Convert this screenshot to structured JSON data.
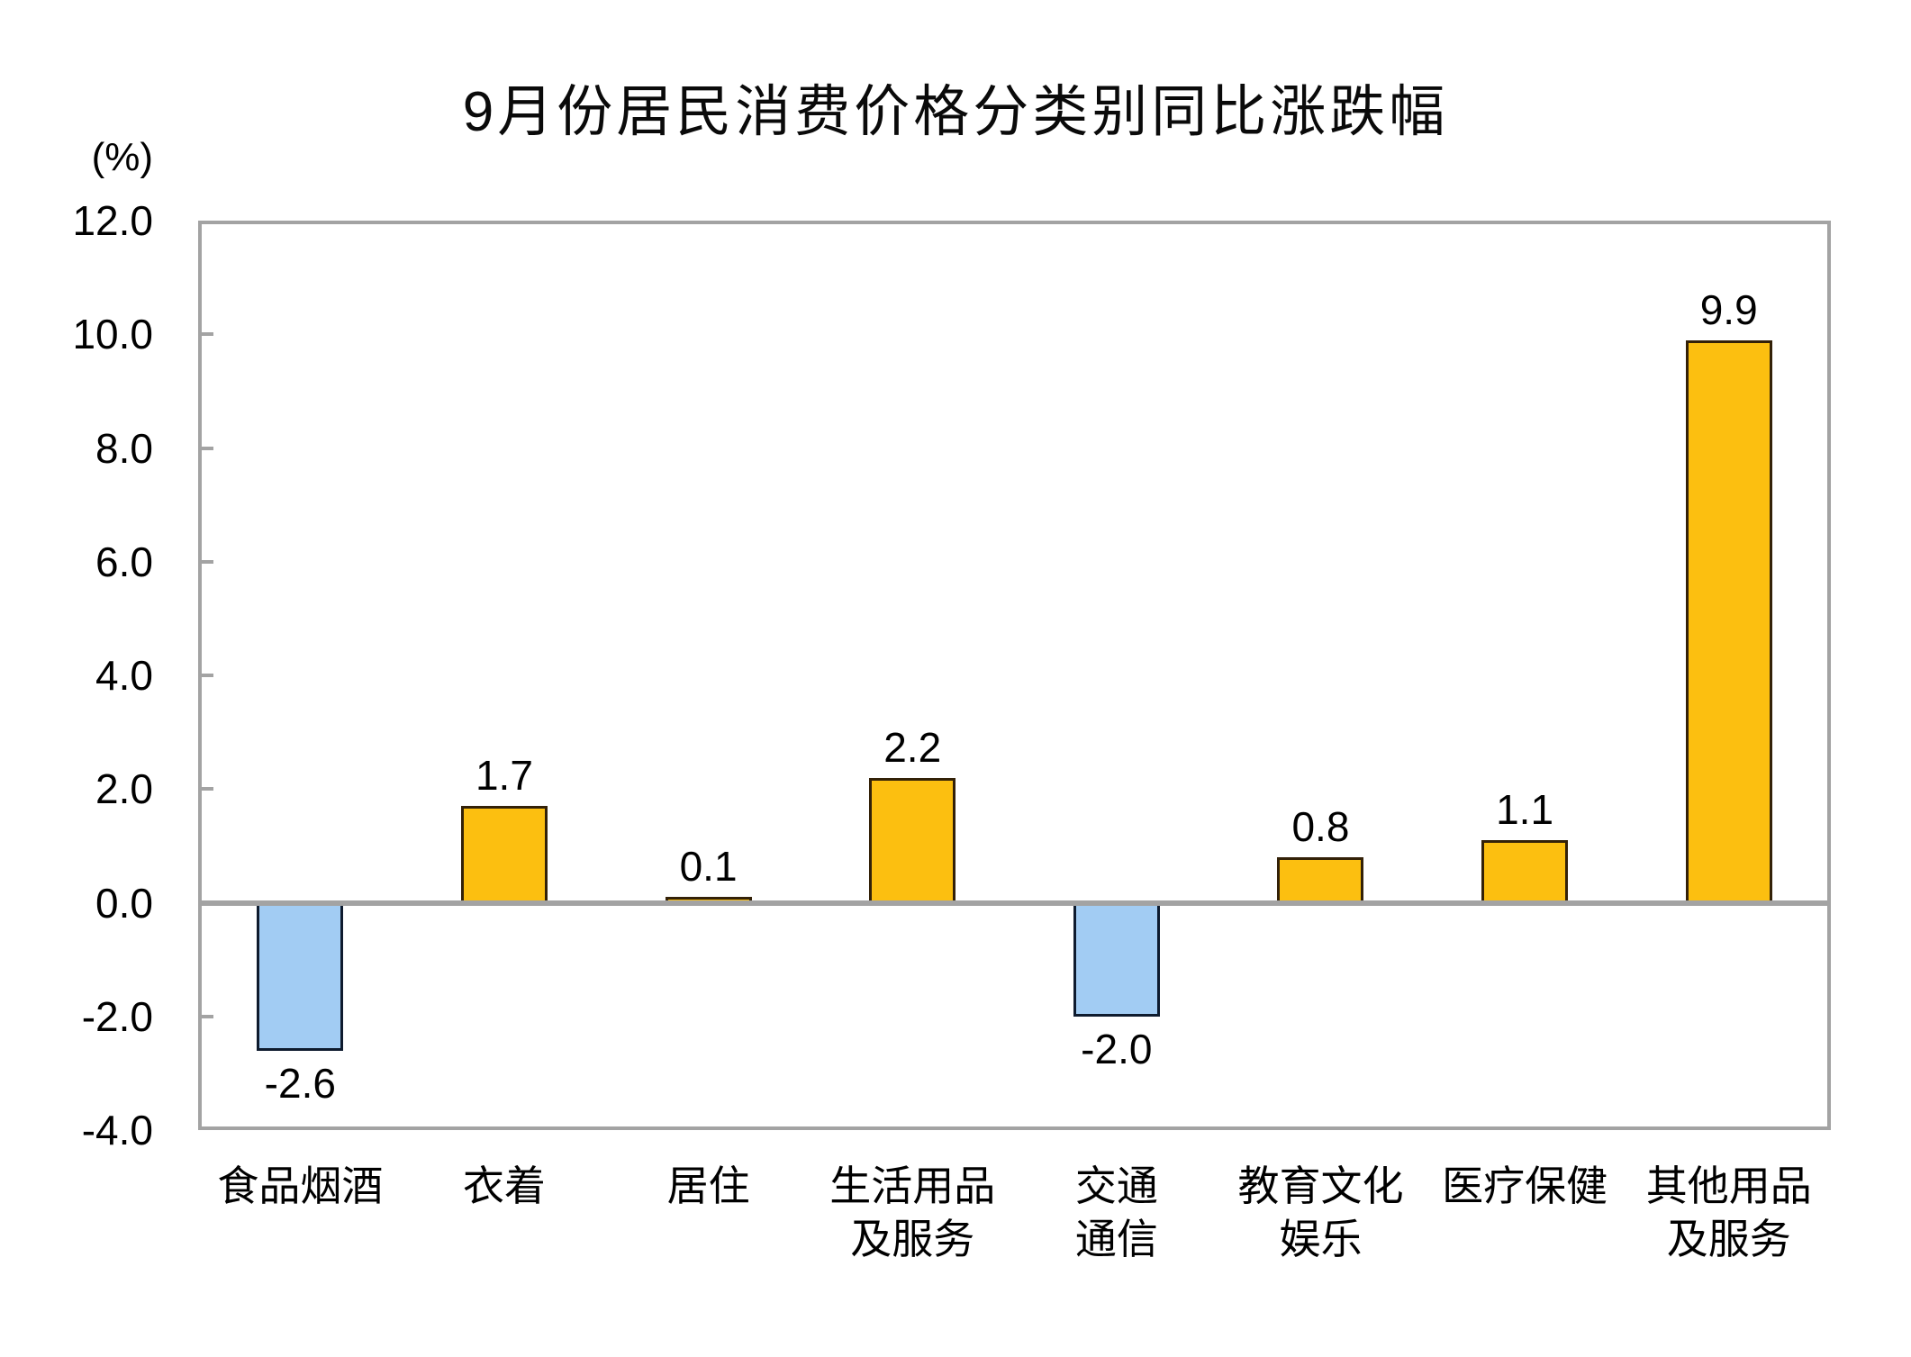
{
  "chart_data": {
    "type": "bar",
    "title": "9月份居民消费价格分类别同比涨跌幅",
    "unit_label": "(%)",
    "xlabel": "",
    "ylabel": "(%)",
    "categories": [
      "食品烟酒",
      "衣着",
      "居住",
      "生活用品及服务",
      "交通通信",
      "教育文化娱乐",
      "医疗保健",
      "其他用品及服务"
    ],
    "category_lines": [
      [
        "食品烟酒"
      ],
      [
        "衣着"
      ],
      [
        "居住"
      ],
      [
        "生活用品",
        "及服务"
      ],
      [
        "交通",
        "通信"
      ],
      [
        "教育文化",
        "娱乐"
      ],
      [
        "医疗保健"
      ],
      [
        "其他用品",
        "及服务"
      ]
    ],
    "values": [
      -2.6,
      1.7,
      0.1,
      2.2,
      -2.0,
      0.8,
      1.1,
      9.9
    ],
    "value_labels": [
      "-2.6",
      "1.7",
      "0.1",
      "2.2",
      "-2.0",
      "0.8",
      "1.1",
      "9.9"
    ],
    "ylim": [
      -4.0,
      12.0
    ],
    "ytick_step": 2.0,
    "ytick_labels": [
      "12.0",
      "10.0",
      "8.0",
      "6.0",
      "4.0",
      "2.0",
      "0.0",
      "-2.0",
      "-4.0"
    ],
    "grid": "zero-line-only",
    "legend_position": "none",
    "colors": {
      "positive_fill": "#FCBF10",
      "positive_border": "#332108",
      "negative_fill": "#A2CCF3",
      "negative_border": "#0E1B2E",
      "axis_gray": "#A3A3A3",
      "text": "#000000",
      "background": "#FFFFFF"
    }
  }
}
